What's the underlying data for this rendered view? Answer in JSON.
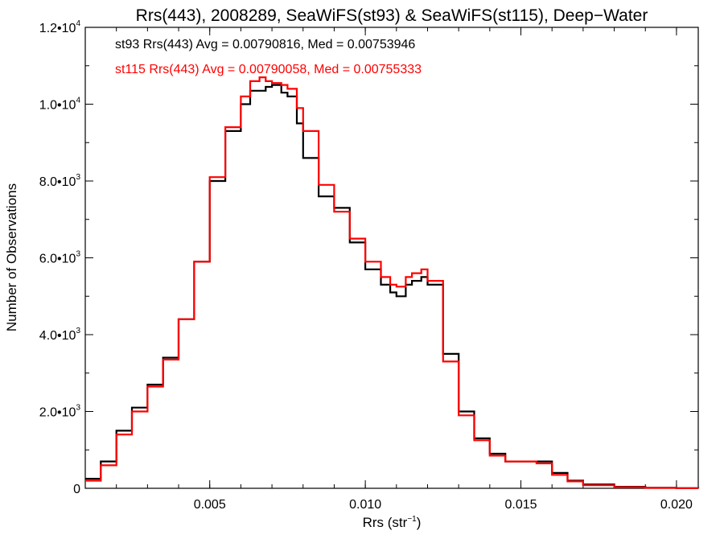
{
  "chart_data": {
    "type": "line",
    "title": "Rrs(443), 2008289, SeaWiFS(st93) & SeaWiFS(st115), Deep−Water",
    "xlabel": "Rrs (str",
    "xlabel_exp": "−1",
    "xlabel_close": ")",
    "ylabel": "Number of Observations",
    "xlim": [
      0.001,
      0.0207
    ],
    "ylim": [
      0,
      12000
    ],
    "x_ticks": [
      {
        "value": 0.005,
        "label": "0.005"
      },
      {
        "value": 0.01,
        "label": "0.010"
      },
      {
        "value": 0.015,
        "label": "0.015"
      },
      {
        "value": 0.02,
        "label": "0.020"
      }
    ],
    "y_ticks": [
      {
        "value": 0,
        "mantissa": "0",
        "exp": ""
      },
      {
        "value": 2000,
        "mantissa": "2.0•10",
        "exp": "3"
      },
      {
        "value": 4000,
        "mantissa": "4.0•10",
        "exp": "3"
      },
      {
        "value": 6000,
        "mantissa": "6.0•10",
        "exp": "3"
      },
      {
        "value": 8000,
        "mantissa": "8.0•10",
        "exp": "3"
      },
      {
        "value": 10000,
        "mantissa": "1.0•10",
        "exp": "4"
      },
      {
        "value": 12000,
        "mantissa": "1.2•10",
        "exp": "4"
      }
    ],
    "annotations": [
      {
        "text": "st93 Rrs(443) Avg = 0.00790816, Med = 0.00753946",
        "color": "#000000"
      },
      {
        "text": "st115 Rrs(443) Avg = 0.00790058, Med = 0.00755333",
        "color": "#ff0000"
      }
    ],
    "series": [
      {
        "color": "#000000",
        "x": [
          0.001,
          0.0015,
          0.002,
          0.0025,
          0.003,
          0.0035,
          0.004,
          0.0045,
          0.005,
          0.0055,
          0.006,
          0.0063,
          0.0066,
          0.0068,
          0.007,
          0.0073,
          0.0075,
          0.0078,
          0.008,
          0.0085,
          0.009,
          0.0095,
          0.01,
          0.0105,
          0.0108,
          0.011,
          0.0113,
          0.0115,
          0.0118,
          0.012,
          0.0125,
          0.013,
          0.0135,
          0.014,
          0.0145,
          0.015,
          0.0155,
          0.016,
          0.0165,
          0.017,
          0.018,
          0.019,
          0.02,
          0.0207
        ],
        "y": [
          250,
          700,
          1500,
          2100,
          2700,
          3400,
          4400,
          5900,
          8000,
          9300,
          10000,
          10350,
          10350,
          10450,
          10500,
          10300,
          10200,
          9500,
          8600,
          7600,
          7300,
          6400,
          5700,
          5300,
          5100,
          5000,
          5300,
          5400,
          5500,
          5300,
          3500,
          2000,
          1300,
          900,
          700,
          700,
          700,
          400,
          200,
          100,
          40,
          15,
          5,
          0
        ]
      },
      {
        "color": "#ff0000",
        "x": [
          0.001,
          0.0015,
          0.002,
          0.0025,
          0.003,
          0.0035,
          0.004,
          0.0045,
          0.005,
          0.0055,
          0.006,
          0.0063,
          0.0066,
          0.0068,
          0.007,
          0.0073,
          0.0075,
          0.0078,
          0.008,
          0.0085,
          0.009,
          0.0095,
          0.01,
          0.0105,
          0.0108,
          0.011,
          0.0113,
          0.0115,
          0.0118,
          0.012,
          0.0125,
          0.013,
          0.0135,
          0.014,
          0.0145,
          0.015,
          0.0155,
          0.016,
          0.0165,
          0.017,
          0.018,
          0.019,
          0.02,
          0.0207
        ],
        "y": [
          200,
          600,
          1400,
          2000,
          2650,
          3350,
          4400,
          5900,
          8100,
          9400,
          10200,
          10600,
          10700,
          10600,
          10550,
          10500,
          10400,
          9900,
          9300,
          7900,
          7200,
          6500,
          5900,
          5500,
          5300,
          5250,
          5500,
          5600,
          5700,
          5400,
          3300,
          1900,
          1250,
          850,
          700,
          700,
          650,
          350,
          180,
          80,
          30,
          10,
          5,
          0
        ]
      }
    ]
  }
}
